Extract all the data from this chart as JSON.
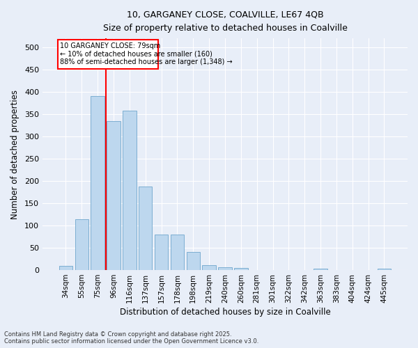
{
  "title_line1": "10, GARGANEY CLOSE, COALVILLE, LE67 4QB",
  "title_line2": "Size of property relative to detached houses in Coalville",
  "xlabel": "Distribution of detached houses by size in Coalville",
  "ylabel": "Number of detached properties",
  "categories": [
    "34sqm",
    "55sqm",
    "75sqm",
    "96sqm",
    "116sqm",
    "137sqm",
    "157sqm",
    "178sqm",
    "198sqm",
    "219sqm",
    "240sqm",
    "260sqm",
    "281sqm",
    "301sqm",
    "322sqm",
    "342sqm",
    "363sqm",
    "383sqm",
    "404sqm",
    "424sqm",
    "445sqm"
  ],
  "values": [
    10,
    114,
    390,
    335,
    357,
    187,
    80,
    80,
    40,
    11,
    7,
    5,
    0,
    0,
    0,
    0,
    4,
    0,
    0,
    0,
    4
  ],
  "bar_color": "#bdd7ee",
  "bar_edge_color": "#5a9ac5",
  "vline_x": 2.5,
  "vline_color": "red",
  "annotation_line1": "10 GARGANEY CLOSE: 79sqm",
  "annotation_line2": "← 10% of detached houses are smaller (160)",
  "annotation_line3": "88% of semi-detached houses are larger (1,348) →",
  "background_color": "#e8eef8",
  "grid_color": "#ffffff",
  "footer_line1": "Contains HM Land Registry data © Crown copyright and database right 2025.",
  "footer_line2": "Contains public sector information licensed under the Open Government Licence v3.0.",
  "ylim": [
    0,
    520
  ],
  "yticks": [
    0,
    50,
    100,
    150,
    200,
    250,
    300,
    350,
    400,
    450,
    500
  ]
}
